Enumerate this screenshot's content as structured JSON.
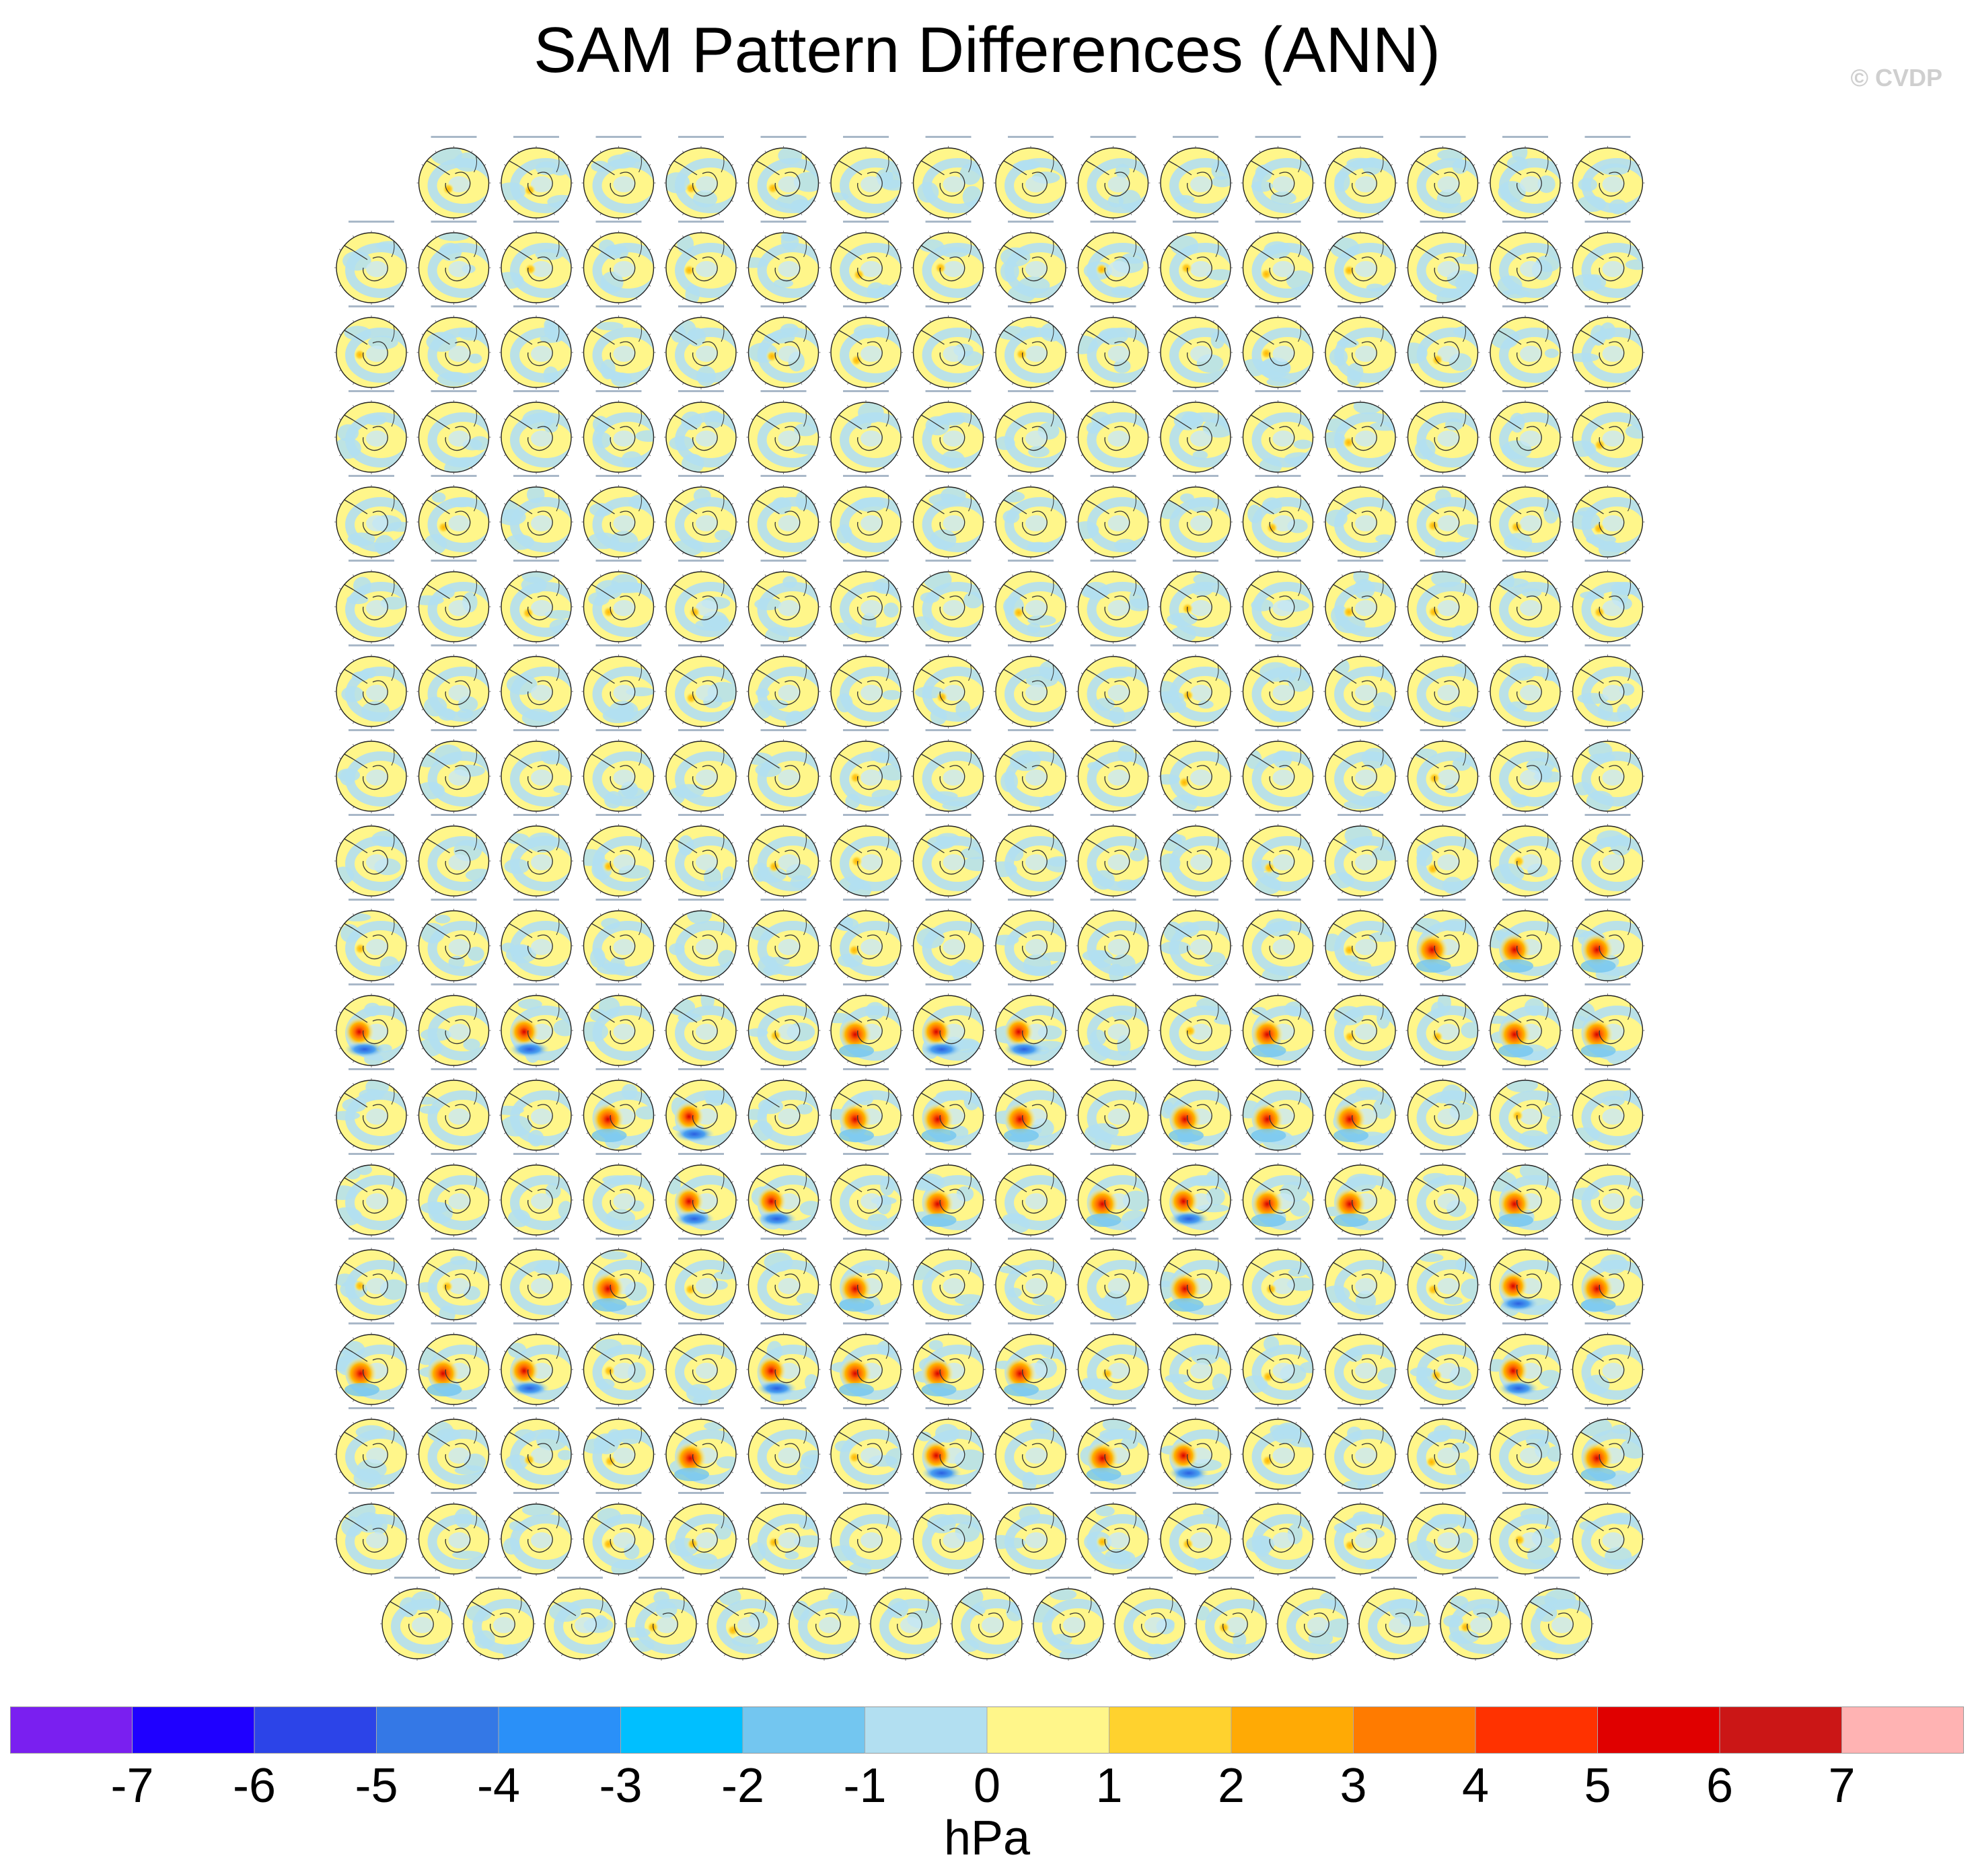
{
  "page": {
    "title": "SAM Pattern Differences (ANN)",
    "watermark": "© CVDP"
  },
  "chart_data": {
    "type": "heatmap",
    "title": "SAM Pattern Differences (ANN)",
    "colorbar": {
      "units": "hPa",
      "tick_labels": [
        "-7",
        "-6",
        "-5",
        "-4",
        "-3",
        "-2",
        "-1",
        "0",
        "1",
        "2",
        "3",
        "4",
        "5",
        "6",
        "7"
      ],
      "boundaries": [
        -7,
        -6,
        -5,
        -4,
        -3,
        -2,
        -1,
        0,
        1,
        2,
        3,
        4,
        5,
        6,
        7
      ],
      "colors": [
        "#7a1ff0",
        "#1f00ff",
        "#2c44e8",
        "#3478e6",
        "#2a90f8",
        "#00bfff",
        "#73c6f0",
        "#b2dff1",
        "#fff68a",
        "#ffd22e",
        "#ffaa05",
        "#ff7b00",
        "#ff3200",
        "#e00000",
        "#cb1616",
        "#ffb3b3"
      ]
    },
    "panel_grid": {
      "projection": "south-polar stereographic",
      "row_counts": [
        15,
        16,
        16,
        16,
        16,
        16,
        16,
        16,
        16,
        16,
        16,
        16,
        16,
        16,
        16,
        16,
        16,
        15
      ],
      "panel_count": 286,
      "strong_anomaly_panels": [
        [
          9,
          13,
          "pos"
        ],
        [
          9,
          14,
          "pos"
        ],
        [
          9,
          15,
          "pos"
        ],
        [
          10,
          0,
          "neg"
        ],
        [
          10,
          2,
          "neg"
        ],
        [
          10,
          6,
          "pos"
        ],
        [
          10,
          7,
          "neg"
        ],
        [
          10,
          8,
          "neg"
        ],
        [
          10,
          11,
          "pos"
        ],
        [
          10,
          14,
          "pos"
        ],
        [
          10,
          15,
          "pos"
        ],
        [
          11,
          3,
          "pos"
        ],
        [
          11,
          4,
          "neg"
        ],
        [
          11,
          6,
          "pos"
        ],
        [
          11,
          7,
          "pos"
        ],
        [
          11,
          8,
          "pos"
        ],
        [
          11,
          10,
          "pos"
        ],
        [
          11,
          11,
          "pos"
        ],
        [
          11,
          12,
          "pos"
        ],
        [
          12,
          4,
          "neg"
        ],
        [
          12,
          5,
          "neg"
        ],
        [
          12,
          7,
          "pos"
        ],
        [
          12,
          9,
          "pos"
        ],
        [
          12,
          10,
          "neg"
        ],
        [
          12,
          11,
          "pos"
        ],
        [
          12,
          12,
          "pos"
        ],
        [
          12,
          14,
          "pos"
        ],
        [
          13,
          3,
          "pos"
        ],
        [
          13,
          6,
          "pos"
        ],
        [
          13,
          10,
          "pos"
        ],
        [
          13,
          14,
          "neg"
        ],
        [
          13,
          15,
          "pos"
        ],
        [
          14,
          0,
          "pos"
        ],
        [
          14,
          1,
          "pos"
        ],
        [
          14,
          2,
          "neg"
        ],
        [
          14,
          5,
          "neg"
        ],
        [
          14,
          6,
          "pos"
        ],
        [
          14,
          7,
          "pos"
        ],
        [
          14,
          8,
          "pos"
        ],
        [
          14,
          14,
          "neg"
        ],
        [
          15,
          4,
          "pos"
        ],
        [
          15,
          7,
          "neg"
        ],
        [
          15,
          9,
          "pos"
        ],
        [
          15,
          10,
          "neg"
        ],
        [
          15,
          15,
          "pos"
        ]
      ]
    }
  }
}
